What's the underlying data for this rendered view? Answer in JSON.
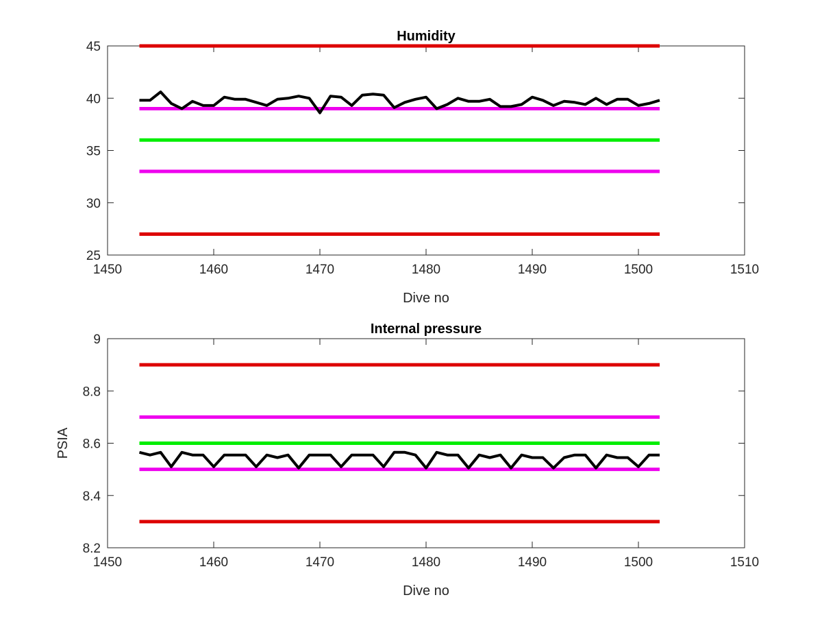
{
  "chart_data": [
    {
      "type": "line",
      "title": "Humidity",
      "xlabel": "Dive no",
      "ylabel": "",
      "xlim": [
        1450,
        1510
      ],
      "ylim": [
        25,
        45
      ],
      "xticks": [
        "1450",
        "1460",
        "1470",
        "1480",
        "1490",
        "1500",
        "1510"
      ],
      "yticks": [
        "25",
        "30",
        "35",
        "40",
        "45"
      ],
      "grid": false,
      "reference_lines": [
        {
          "y": 45,
          "x": [
            1453,
            1502
          ],
          "color": "#dd0000"
        },
        {
          "y": 39,
          "x": [
            1453,
            1502
          ],
          "color": "#ee00ee"
        },
        {
          "y": 36,
          "x": [
            1453,
            1502
          ],
          "color": "#00ee00"
        },
        {
          "y": 33,
          "x": [
            1453,
            1502
          ],
          "color": "#ee00ee"
        },
        {
          "y": 27,
          "x": [
            1453,
            1502
          ],
          "color": "#dd0000"
        }
      ],
      "series": [
        {
          "color": "#000000",
          "x": [
            1453,
            1454,
            1455,
            1456,
            1457,
            1458,
            1459,
            1460,
            1461,
            1462,
            1463,
            1464,
            1465,
            1466,
            1467,
            1468,
            1469,
            1470,
            1471,
            1472,
            1473,
            1474,
            1475,
            1476,
            1477,
            1478,
            1479,
            1480,
            1481,
            1482,
            1483,
            1484,
            1485,
            1486,
            1487,
            1488,
            1489,
            1490,
            1491,
            1492,
            1493,
            1494,
            1495,
            1496,
            1497,
            1498,
            1499,
            1500,
            1501,
            1502
          ],
          "values": [
            39.8,
            39.8,
            40.6,
            39.5,
            39.0,
            39.7,
            39.3,
            39.3,
            40.1,
            39.9,
            39.9,
            39.6,
            39.3,
            39.9,
            40.0,
            40.2,
            40.0,
            38.6,
            40.2,
            40.1,
            39.3,
            40.3,
            40.4,
            40.3,
            39.1,
            39.6,
            39.9,
            40.1,
            39.0,
            39.4,
            40.0,
            39.7,
            39.7,
            39.9,
            39.2,
            39.2,
            39.4,
            40.1,
            39.8,
            39.3,
            39.7,
            39.6,
            39.4,
            40.0,
            39.4,
            39.9,
            39.9,
            39.3,
            39.5,
            39.8
          ]
        }
      ]
    },
    {
      "type": "line",
      "title": "Internal pressure",
      "xlabel": "Dive no",
      "ylabel": "PSIA",
      "xlim": [
        1450,
        1510
      ],
      "ylim": [
        8.2,
        9.0
      ],
      "xticks": [
        "1450",
        "1460",
        "1470",
        "1480",
        "1490",
        "1500",
        "1510"
      ],
      "yticks": [
        "8.2",
        "8.4",
        "8.6",
        "8.8",
        "9"
      ],
      "grid": false,
      "reference_lines": [
        {
          "y": 8.9,
          "x": [
            1453,
            1502
          ],
          "color": "#dd0000"
        },
        {
          "y": 8.7,
          "x": [
            1453,
            1502
          ],
          "color": "#ee00ee"
        },
        {
          "y": 8.6,
          "x": [
            1453,
            1502
          ],
          "color": "#00ee00"
        },
        {
          "y": 8.5,
          "x": [
            1453,
            1502
          ],
          "color": "#ee00ee"
        },
        {
          "y": 8.3,
          "x": [
            1453,
            1502
          ],
          "color": "#dd0000"
        }
      ],
      "series": [
        {
          "color": "#000000",
          "x": [
            1453,
            1454,
            1455,
            1456,
            1457,
            1458,
            1459,
            1460,
            1461,
            1462,
            1463,
            1464,
            1465,
            1466,
            1467,
            1468,
            1469,
            1470,
            1471,
            1472,
            1473,
            1474,
            1475,
            1476,
            1477,
            1478,
            1479,
            1480,
            1481,
            1482,
            1483,
            1484,
            1485,
            1486,
            1487,
            1488,
            1489,
            1490,
            1491,
            1492,
            1493,
            1494,
            1495,
            1496,
            1497,
            1498,
            1499,
            1500,
            1501,
            1502
          ],
          "values": [
            8.565,
            8.555,
            8.565,
            8.51,
            8.565,
            8.555,
            8.555,
            8.51,
            8.555,
            8.555,
            8.555,
            8.51,
            8.555,
            8.545,
            8.555,
            8.505,
            8.555,
            8.555,
            8.555,
            8.51,
            8.555,
            8.555,
            8.555,
            8.51,
            8.565,
            8.565,
            8.555,
            8.505,
            8.565,
            8.555,
            8.555,
            8.505,
            8.555,
            8.545,
            8.555,
            8.505,
            8.555,
            8.545,
            8.545,
            8.505,
            8.545,
            8.555,
            8.555,
            8.505,
            8.555,
            8.545,
            8.545,
            8.51,
            8.555,
            8.555
          ]
        }
      ]
    }
  ]
}
